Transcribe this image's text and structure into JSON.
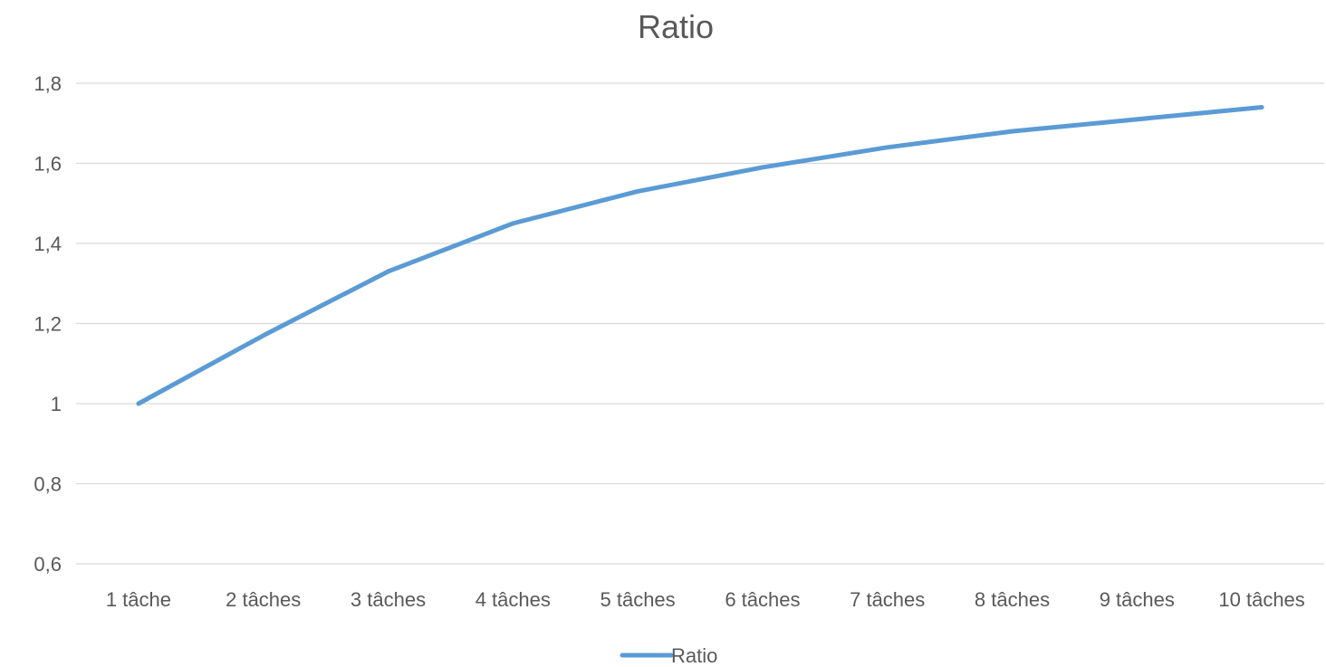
{
  "chart_data": {
    "type": "line",
    "title": "Ratio",
    "categories": [
      "1 tâche",
      "2 tâches",
      "3 tâches",
      "4 tâches",
      "5 tâches",
      "6 tâches",
      "7 tâches",
      "8 tâches",
      "9 tâches",
      "10 tâches"
    ],
    "series": [
      {
        "name": "Ratio",
        "values": [
          1.0,
          1.17,
          1.33,
          1.45,
          1.53,
          1.59,
          1.64,
          1.68,
          1.71,
          1.74
        ],
        "color": "#5b9bd5"
      }
    ],
    "y_ticks": [
      "0,6",
      "0,8",
      "1",
      "1,2",
      "1,4",
      "1,6",
      "1,8"
    ],
    "y_tick_values": [
      0.6,
      0.8,
      1.0,
      1.2,
      1.4,
      1.6,
      1.8
    ],
    "ylim": [
      0.6,
      1.8
    ],
    "grid": true,
    "legend_position": "bottom"
  }
}
